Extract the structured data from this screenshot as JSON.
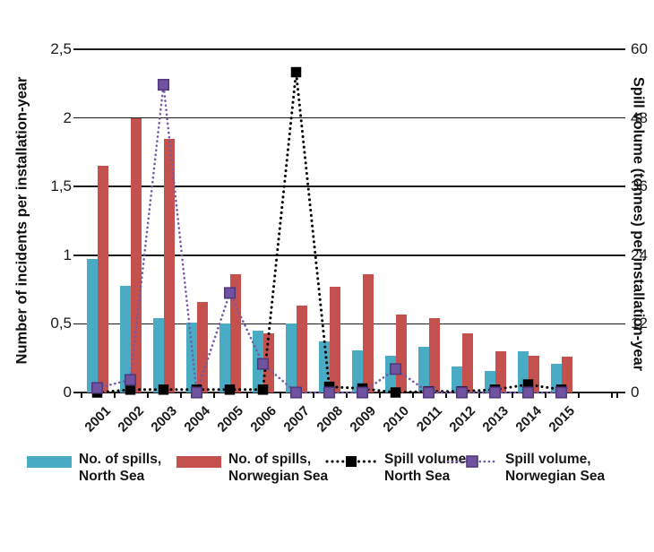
{
  "page": {
    "background": "#ffffff"
  },
  "chart_data": {
    "type": "bar+line combo",
    "title": "",
    "categories": [
      "2001",
      "2002",
      "2003",
      "2004",
      "2005",
      "2006",
      "2007",
      "2008",
      "2009",
      "2010",
      "2011",
      "2012",
      "2013",
      "2014",
      "2015"
    ],
    "left_axis": {
      "title": "Number of incidents per installation-year",
      "min": 0,
      "max": 2.5,
      "ticks": [
        {
          "label": "2,5",
          "value": 2.5
        },
        {
          "label": "2",
          "value": 2.0
        },
        {
          "label": "1,5",
          "value": 1.5
        },
        {
          "label": "1",
          "value": 1.0
        },
        {
          "label": "0,5",
          "value": 0.5
        },
        {
          "label": "0",
          "value": 0.0
        }
      ]
    },
    "right_axis": {
      "title": "Spill volume (tonnes) per installation-year",
      "min": 0,
      "max": 60,
      "ticks": [
        {
          "label": "60",
          "value": 60
        },
        {
          "label": "48",
          "value": 48
        },
        {
          "label": "36",
          "value": 36
        },
        {
          "label": "24",
          "value": 24
        },
        {
          "label": "12",
          "value": 12
        },
        {
          "label": "0",
          "value": 0
        }
      ]
    },
    "bar_series": [
      {
        "name": "No. of spills, North Sea",
        "axis": "left",
        "color": "#4aabc5",
        "values": [
          0.97,
          0.78,
          0.54,
          0.51,
          0.5,
          0.45,
          0.5,
          0.37,
          0.31,
          0.27,
          0.33,
          0.19,
          0.16,
          0.3,
          0.21
        ]
      },
      {
        "name": "No. of spills, Norwegian Sea",
        "axis": "left",
        "color": "#c4514e",
        "values": [
          1.65,
          2.0,
          1.85,
          0.66,
          0.86,
          0.43,
          0.63,
          0.77,
          0.86,
          0.57,
          0.54,
          0.43,
          0.3,
          0.27,
          0.26
        ]
      }
    ],
    "line_series": [
      {
        "name": "Spill volume, North Sea",
        "axis": "right",
        "color": "#000000",
        "marker_fill": "#000000",
        "marker_stroke": "#000000",
        "values": [
          0,
          0.5,
          0.5,
          0.5,
          0.5,
          0.5,
          56,
          1.0,
          0.7,
          0,
          0.2,
          0.2,
          0.5,
          1.4,
          0.5
        ]
      },
      {
        "name": "Spill volume, Norwegian Sea",
        "axis": "right",
        "color": "#7459a8",
        "marker_fill": "#6f53a1",
        "marker_stroke": "#53397c",
        "values": [
          0.8,
          2.2,
          53.8,
          0,
          17.4,
          5.0,
          0,
          0,
          0,
          4.1,
          0,
          0,
          0,
          0,
          0
        ]
      }
    ],
    "legend": [
      {
        "swatch": "bar",
        "series": 0,
        "line1": "No. of spills,",
        "line2": "North Sea"
      },
      {
        "swatch": "bar",
        "series": 1,
        "line1": "No. of spills,",
        "line2": "Norwegian Sea"
      },
      {
        "swatch": "line",
        "series": 0,
        "line1": "Spill volume,",
        "line2": "North Sea"
      },
      {
        "swatch": "line",
        "series": 1,
        "line1": "Spill volume,",
        "line2": "Norwegian Sea"
      }
    ],
    "grid": true,
    "gridline_color": "#1c1c1c",
    "legend_position": "bottom"
  }
}
